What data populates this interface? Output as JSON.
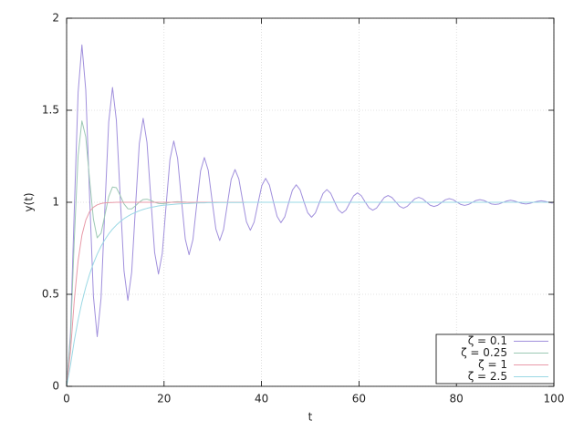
{
  "chart_data": {
    "type": "line",
    "xlabel": "t",
    "ylabel": "y(t)",
    "x": [
      0,
      0.79,
      1.57,
      2.36,
      3.14,
      3.93,
      4.71,
      5.5,
      6.28,
      7.07,
      7.85,
      8.64,
      9.42,
      10.21,
      11,
      11.78,
      12.57,
      13.35,
      14.14,
      14.92,
      15.71,
      16.49,
      17.28,
      18.06,
      18.85,
      19.63,
      20.42,
      21.21,
      21.99,
      22.78,
      23.56,
      24.35,
      25.13,
      25.92,
      26.7,
      27.49,
      28.27,
      29.06,
      29.85,
      30.63,
      31.42,
      32.2,
      32.99,
      33.77,
      34.56,
      35.34,
      36.13,
      36.91,
      37.7,
      38.48,
      39.27,
      40.06,
      40.84,
      41.63,
      42.41,
      43.2,
      43.98,
      44.77,
      45.55,
      46.34,
      47.12,
      47.91,
      48.69,
      49.48,
      50.27,
      51.05,
      51.84,
      52.62,
      53.41,
      54.19,
      54.98,
      55.76,
      56.55,
      57.33,
      58.12,
      58.9,
      59.69,
      60.48,
      61.26,
      62.05,
      62.83,
      63.62,
      64.4,
      65.19,
      65.97,
      66.76,
      67.54,
      68.33,
      69.12,
      69.9,
      70.69,
      71.47,
      72.26,
      73.04,
      73.83,
      74.61,
      75.4,
      76.18,
      76.97,
      77.75,
      78.54,
      79.33,
      80.11,
      80.9,
      81.68,
      82.47,
      83.25,
      84.04,
      84.82,
      85.61,
      86.39,
      87.18,
      87.96,
      88.75,
      89.54,
      90.32,
      91.11,
      91.89,
      92.68,
      93.46,
      94.25,
      95.03,
      95.82,
      96.6,
      97.39,
      98.17,
      98.96,
      99.75
    ],
    "series": [
      {
        "name": "ζ = 0.1",
        "color": "#a08fdc",
        "values": [
          0,
          0.286,
          0.954,
          1.597,
          1.855,
          1.61,
          1.04,
          0.49,
          0.27,
          0.479,
          0.966,
          1.436,
          1.624,
          1.446,
          1.029,
          0.627,
          0.467,
          0.619,
          0.975,
          1.319,
          1.456,
          1.326,
          1.021,
          0.728,
          0.61,
          0.722,
          0.982,
          1.233,
          1.333,
          1.238,
          1.015,
          0.801,
          0.715,
          0.797,
          0.987,
          1.17,
          1.243,
          1.174,
          1.011,
          0.855,
          0.792,
          0.852,
          0.99,
          1.124,
          1.178,
          1.127,
          1.008,
          0.894,
          0.848,
          0.892,
          0.993,
          1.091,
          1.13,
          1.093,
          1.006,
          0.923,
          0.889,
          0.921,
          0.995,
          1.066,
          1.095,
          1.068,
          1.004,
          0.943,
          0.919,
          0.942,
          0.996,
          1.048,
          1.069,
          1.049,
          1.003,
          0.959,
          0.941,
          0.958,
          0.997,
          1.035,
          1.051,
          1.036,
          1.002,
          0.97,
          0.957,
          0.969,
          0.998,
          1.026,
          1.037,
          1.026,
          1.002,
          0.978,
          0.968,
          0.978,
          0.999,
          1.019,
          1.027,
          1.019,
          1.001,
          0.984,
          0.977,
          0.984,
          0.999,
          1.014,
          1.02,
          1.014,
          1.001,
          0.988,
          0.983,
          0.988,
          0.999,
          1.01,
          1.014,
          1.01,
          1.001,
          0.991,
          0.988,
          0.991,
          0.999,
          1.007,
          1.011,
          1.007,
          1,
          0.994,
          0.991,
          0.994,
          1,
          1.005,
          1.008,
          1.005,
          1,
          0.995
        ]
      },
      {
        "name": "ζ = 0.25",
        "color": "#9cc8b4",
        "values": [
          0,
          0.258,
          0.792,
          1.254,
          1.442,
          1.355,
          1.125,
          0.909,
          0.807,
          0.832,
          0.93,
          1.03,
          1.083,
          1.079,
          1.037,
          0.991,
          0.965,
          0.964,
          0.981,
          1.001,
          1.015,
          1.017,
          1.01,
          1,
          0.994,
          0.992,
          0.995,
          0.999,
          1.002,
          1.003,
          1.002,
          1.001,
          0.999,
          0.999,
          0.999,
          1,
          1,
          1,
          1,
          1,
          1,
          1,
          1,
          1,
          1,
          1,
          1,
          1,
          1,
          1,
          1,
          1,
          1,
          1,
          1,
          1,
          1,
          1,
          1,
          1,
          1,
          1,
          1,
          1,
          1,
          1,
          1,
          1,
          1,
          1,
          1,
          1,
          1,
          1,
          1,
          1,
          1,
          1,
          1,
          1,
          1,
          1,
          1,
          1,
          1,
          1,
          1,
          1,
          1,
          1,
          1,
          1,
          1,
          1,
          1,
          1,
          1,
          1,
          1,
          1,
          1,
          1,
          1,
          1,
          1,
          1,
          1,
          1,
          1,
          1,
          1,
          1,
          1,
          1,
          1,
          1,
          1,
          1,
          1,
          1,
          1,
          1,
          1,
          1,
          1,
          1,
          1,
          1
        ]
      },
      {
        "name": "ζ = 1",
        "color": "#e89aa8",
        "values": [
          0,
          0.186,
          0.466,
          0.682,
          0.821,
          0.903,
          0.949,
          0.973,
          0.986,
          0.993,
          0.997,
          0.998,
          0.999,
          1,
          1,
          1,
          1,
          1,
          1,
          1,
          1,
          1,
          1,
          1,
          1,
          1,
          1,
          1,
          1,
          1,
          1,
          1,
          1,
          1,
          1,
          1,
          1,
          1,
          1,
          1,
          1,
          1,
          1,
          1,
          1,
          1,
          1,
          1,
          1,
          1,
          1,
          1,
          1,
          1,
          1,
          1,
          1,
          1,
          1,
          1,
          1,
          1,
          1,
          1,
          1,
          1,
          1,
          1,
          1,
          1,
          1,
          1,
          1,
          1,
          1,
          1,
          1,
          1,
          1,
          1,
          1,
          1,
          1,
          1,
          1,
          1,
          1,
          1,
          1,
          1,
          1,
          1,
          1,
          1,
          1,
          1,
          1,
          1,
          1,
          1,
          1,
          1,
          1,
          1,
          1,
          1,
          1,
          1,
          1,
          1,
          1,
          1,
          1,
          1,
          1,
          1,
          1,
          1,
          1,
          1,
          1,
          1,
          1,
          1,
          1,
          1,
          1,
          1
        ]
      },
      {
        "name": "ζ = 2.5",
        "color": "#9ad8e4",
        "values": [
          0,
          0.114,
          0.247,
          0.361,
          0.457,
          0.539,
          0.609,
          0.668,
          0.718,
          0.761,
          0.797,
          0.828,
          0.854,
          0.876,
          0.895,
          0.911,
          0.924,
          0.936,
          0.945,
          0.954,
          0.961,
          0.967,
          0.972,
          0.976,
          0.98,
          0.983,
          0.985,
          0.987,
          0.989,
          0.991,
          0.992,
          0.993,
          0.994,
          0.995,
          0.996,
          0.997,
          0.997,
          0.998,
          0.998,
          0.998,
          0.999,
          0.999,
          0.999,
          0.999,
          0.999,
          0.999,
          0.999,
          1,
          1,
          1,
          1,
          1,
          1,
          1,
          1,
          1,
          1,
          1,
          1,
          1,
          1,
          1,
          1,
          1,
          1,
          1,
          1,
          1,
          1,
          1,
          1,
          1,
          1,
          1,
          1,
          1,
          1,
          1,
          1,
          1,
          1,
          1,
          1,
          1,
          1,
          1,
          1,
          1,
          1,
          1,
          1,
          1,
          1,
          1,
          1,
          1,
          1,
          1,
          1,
          1,
          1,
          1,
          1,
          1,
          1,
          1,
          1,
          1,
          1,
          1,
          1,
          1,
          1,
          1,
          1,
          1,
          1,
          1,
          1,
          1,
          1,
          1,
          1,
          1,
          1,
          1,
          1,
          1
        ]
      }
    ],
    "xlim": [
      0,
      100
    ],
    "xticks": [
      0,
      20,
      40,
      60,
      80,
      100
    ],
    "ylim": [
      0,
      2
    ],
    "yticks": [
      0,
      0.5,
      1,
      1.5,
      2
    ],
    "grid": true,
    "legend": "bottom right"
  }
}
